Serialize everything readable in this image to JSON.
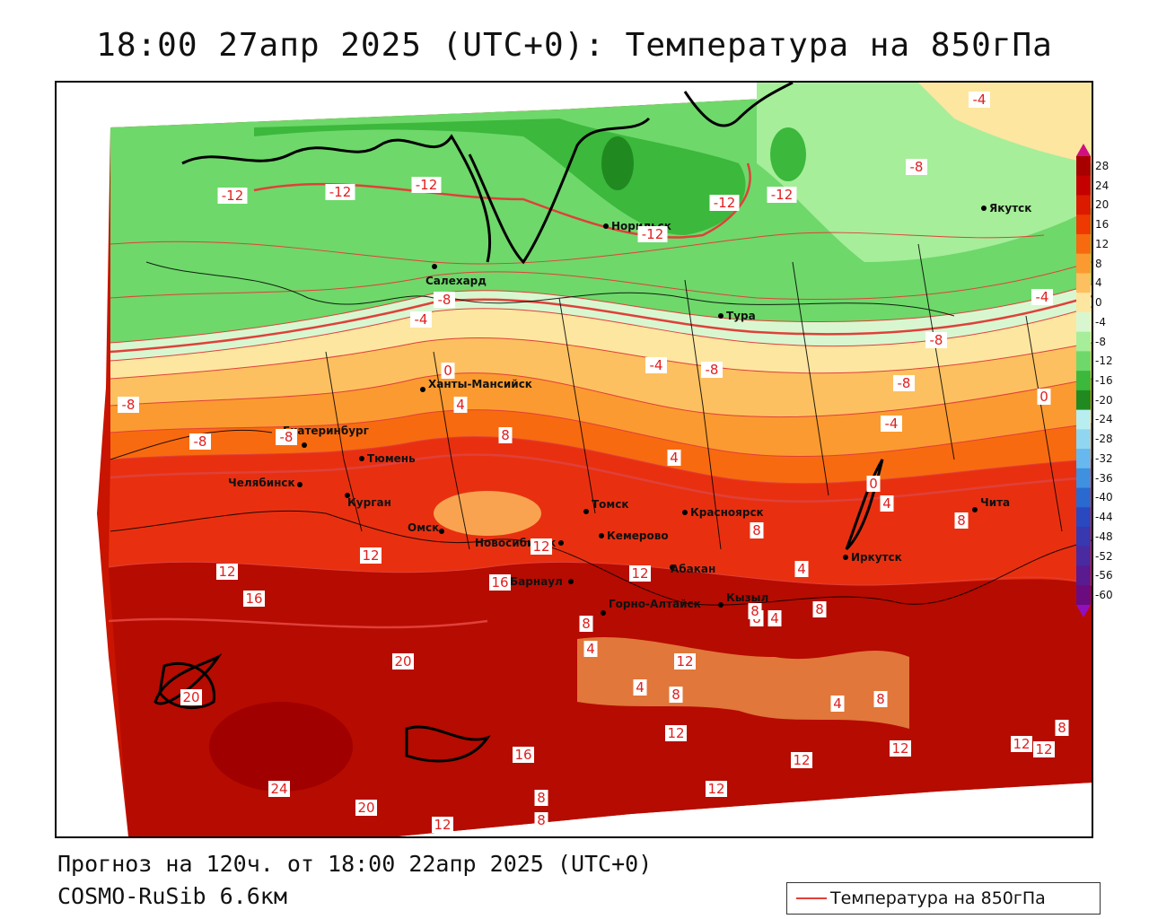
{
  "title": "18:00 27апр 2025 (UTC+0): Температура на 850гПа",
  "footer": {
    "forecast": "Прогноз на 120ч. от 18:00 22апр 2025 (UTC+0)",
    "model": "COSMO-RuSib 6.6км"
  },
  "legend": {
    "label": "Температура на 850гПа",
    "line_color": "#e0403a"
  },
  "colorbar": {
    "ticks": [
      "28",
      "24",
      "20",
      "16",
      "12",
      "8",
      "4",
      "0",
      "-4",
      "-8",
      "-12",
      "-16",
      "-20",
      "-24",
      "-28",
      "-32",
      "-36",
      "-40",
      "-44",
      "-48",
      "-52",
      "-56",
      "-60"
    ],
    "colors": [
      "#a80000",
      "#c40000",
      "#dc1a00",
      "#ee3a00",
      "#f86a10",
      "#fb9a30",
      "#fdc060",
      "#fde6a0",
      "#d8f7d0",
      "#a6ee9a",
      "#6ed86a",
      "#3cb83c",
      "#208a20",
      "#b8eef0",
      "#90d6f0",
      "#66b8ee",
      "#4090e0",
      "#2a6ad0",
      "#2a48c0",
      "#3838b0",
      "#4a2aa0",
      "#5a1a90",
      "#6a0c80"
    ]
  },
  "cities": [
    {
      "name": "Якутск"
    },
    {
      "name": "Норильск"
    },
    {
      "name": "Салехард"
    },
    {
      "name": "Тура"
    },
    {
      "name": "Ханты-Мансийск"
    },
    {
      "name": "Екатеринбург"
    },
    {
      "name": "Тюмень"
    },
    {
      "name": "Челябинск"
    },
    {
      "name": "Курган"
    },
    {
      "name": "Омск"
    },
    {
      "name": "Новосибирск"
    },
    {
      "name": "Томск"
    },
    {
      "name": "Кемерово"
    },
    {
      "name": "Красноярск"
    },
    {
      "name": "Барнаул"
    },
    {
      "name": "Абакан"
    },
    {
      "name": "Горно-Алтайск"
    },
    {
      "name": "Кызыл"
    },
    {
      "name": "Иркутск"
    },
    {
      "name": "Чита"
    }
  ],
  "contour_labels": [
    "-4",
    "-8",
    "-12",
    "-12",
    "-12",
    "-12",
    "-12",
    "-12",
    "-8",
    "-4",
    "-4",
    "-8",
    "-8",
    "-4",
    "-8",
    "-8",
    "-8",
    "-8",
    "0",
    "4",
    "8",
    "-4",
    "0",
    "4",
    "0",
    "4",
    "8",
    "8",
    "12",
    "12",
    "12",
    "16",
    "16",
    "12",
    "8",
    "4",
    "4",
    "4",
    "8",
    "4",
    "4",
    "12",
    "12",
    "20",
    "20",
    "24",
    "20",
    "16",
    "12",
    "12",
    "8",
    "8",
    "4",
    "8",
    "8",
    "12",
    "12",
    "8",
    "12",
    "12",
    "8",
    "8"
  ]
}
